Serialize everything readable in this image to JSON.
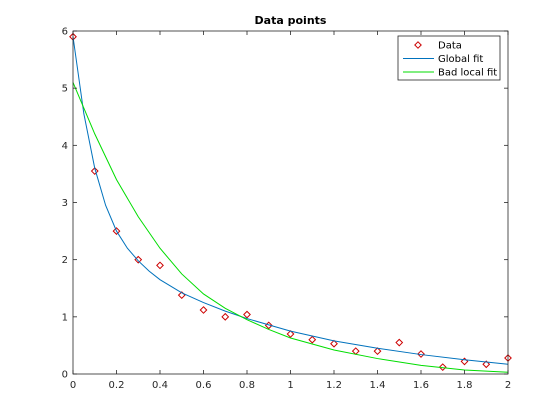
{
  "chart_data": {
    "type": "line",
    "title": "Data points",
    "xlabel": "",
    "ylabel": "",
    "xlim": [
      0,
      2
    ],
    "ylim": [
      0,
      6
    ],
    "xticks": [
      "0",
      "0.2",
      "0.4",
      "0.6",
      "0.8",
      "1",
      "1.2",
      "1.4",
      "1.6",
      "1.8",
      "2"
    ],
    "yticks": [
      "0",
      "1",
      "2",
      "3",
      "4",
      "5",
      "6"
    ],
    "grid": false,
    "legend_position": "top-right",
    "series": [
      {
        "name": "Data",
        "style": "markers",
        "marker": "diamond",
        "color": "#cc0000",
        "x": [
          0,
          0.1,
          0.2,
          0.3,
          0.4,
          0.5,
          0.6,
          0.7,
          0.8,
          0.9,
          1.0,
          1.1,
          1.2,
          1.3,
          1.4,
          1.5,
          1.6,
          1.7,
          1.8,
          1.9,
          2.0
        ],
        "y": [
          5.9,
          3.55,
          2.5,
          2.0,
          1.9,
          1.38,
          1.12,
          1.0,
          1.04,
          0.85,
          0.7,
          0.6,
          0.53,
          0.4,
          0.4,
          0.55,
          0.35,
          0.12,
          0.22,
          0.17,
          0.28
        ]
      },
      {
        "name": "Global fit",
        "style": "line",
        "color": "#0072bd",
        "x": [
          0,
          0.05,
          0.1,
          0.15,
          0.2,
          0.25,
          0.3,
          0.35,
          0.4,
          0.5,
          0.6,
          0.7,
          0.8,
          0.9,
          1.0,
          1.2,
          1.4,
          1.6,
          1.8,
          2.0
        ],
        "y": [
          5.9,
          4.55,
          3.6,
          2.95,
          2.5,
          2.2,
          1.98,
          1.8,
          1.65,
          1.42,
          1.25,
          1.1,
          0.97,
          0.86,
          0.75,
          0.58,
          0.45,
          0.34,
          0.25,
          0.17
        ]
      },
      {
        "name": "Bad local fit",
        "style": "line",
        "color": "#00dd00",
        "x": [
          0,
          0.1,
          0.2,
          0.3,
          0.4,
          0.5,
          0.6,
          0.7,
          0.8,
          0.9,
          1.0,
          1.2,
          1.4,
          1.6,
          1.8,
          2.0
        ],
        "y": [
          5.1,
          4.2,
          3.4,
          2.75,
          2.2,
          1.75,
          1.4,
          1.15,
          0.95,
          0.78,
          0.63,
          0.42,
          0.27,
          0.15,
          0.07,
          0.03
        ]
      }
    ]
  }
}
